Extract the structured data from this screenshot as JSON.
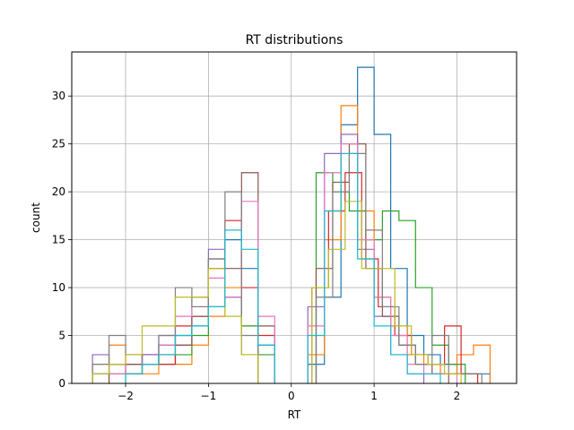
{
  "chart_data": {
    "type": "histogram",
    "title": "RT distributions",
    "xlabel": "RT",
    "ylabel": "count",
    "xlim": [
      -2.65,
      2.72
    ],
    "ylim": [
      0,
      34.6
    ],
    "x_ticks": [
      -2,
      -1,
      0,
      1,
      2
    ],
    "x_tick_labels": [
      "−2",
      "−1",
      "0",
      "1",
      "2"
    ],
    "y_ticks": [
      0,
      5,
      10,
      15,
      20,
      25,
      30
    ],
    "y_tick_labels": [
      "0",
      "5",
      "10",
      "15",
      "20",
      "25",
      "30"
    ],
    "grid": true,
    "histtype": "step",
    "series": [
      {
        "color": "#1f77b4",
        "edges": [
          0.2,
          0.4,
          0.6,
          0.8,
          1.0,
          1.2,
          1.4,
          1.6,
          1.8,
          2.0,
          2.2,
          2.4
        ],
        "counts": [
          2,
          9,
          27,
          33,
          26,
          12,
          5,
          3,
          2,
          1,
          1
        ]
      },
      {
        "color": "#ff7f0e",
        "edges": [
          0.2,
          0.4,
          0.6,
          0.8,
          1.0,
          1.2,
          1.4,
          1.6,
          1.8,
          2.0,
          2.2,
          2.4
        ],
        "counts": [
          3,
          15,
          29,
          18,
          9,
          6,
          3,
          2,
          1,
          3,
          4
        ]
      },
      {
        "color": "#2ca02c",
        "edges": [
          0.3,
          0.5,
          0.7,
          0.9,
          1.1,
          1.3,
          1.5,
          1.7,
          1.9,
          2.1
        ],
        "counts": [
          22,
          20,
          18,
          15,
          18,
          17,
          10,
          4,
          2
        ]
      },
      {
        "color": "#d62728",
        "edges": [
          0.25,
          0.45,
          0.65,
          0.85,
          1.05,
          1.25,
          1.45,
          1.65,
          1.85,
          2.05,
          2.25
        ],
        "counts": [
          10,
          18,
          22,
          13,
          8,
          5,
          3,
          2,
          6,
          1
        ]
      },
      {
        "color": "#9467bd",
        "edges": [
          0.2,
          0.4,
          0.6,
          0.8,
          1.0,
          1.2,
          1.4,
          1.6
        ],
        "counts": [
          8,
          24,
          26,
          14,
          7,
          3,
          1
        ]
      },
      {
        "color": "#8c564b",
        "edges": [
          0.3,
          0.5,
          0.7,
          0.9,
          1.1,
          1.3,
          1.5,
          1.7,
          1.9
        ],
        "counts": [
          12,
          21,
          25,
          12,
          7,
          4,
          2,
          1
        ]
      },
      {
        "color": "#e377c2",
        "edges": [
          0.2,
          0.4,
          0.6,
          0.8,
          1.0,
          1.2,
          1.4,
          1.6,
          1.8,
          2.0
        ],
        "counts": [
          6,
          22,
          25,
          15,
          9,
          5,
          2,
          1,
          1
        ]
      },
      {
        "color": "#7f7f7f",
        "edges": [
          0.3,
          0.5,
          0.7,
          0.9,
          1.1,
          1.3,
          1.5,
          1.7,
          1.9,
          2.1,
          2.3
        ],
        "counts": [
          9,
          20,
          24,
          16,
          8,
          4,
          2,
          5,
          1,
          1
        ]
      },
      {
        "color": "#bcbd22",
        "edges": [
          0.25,
          0.45,
          0.65,
          0.85,
          1.05,
          1.25,
          1.45,
          1.65,
          1.85,
          2.05
        ],
        "counts": [
          10,
          14,
          19,
          12,
          12,
          6,
          3,
          2,
          1
        ]
      },
      {
        "color": "#17becf",
        "edges": [
          0.2,
          0.4,
          0.6,
          0.8,
          1.0,
          1.2,
          1.4,
          1.6,
          1.8
        ],
        "counts": [
          5,
          18,
          24,
          13,
          6,
          3,
          1,
          1
        ]
      },
      {
        "color": "#1f77b4",
        "edges": [
          -2.4,
          -2.2,
          -2.0,
          -1.8,
          -1.6,
          -1.4,
          -1.2,
          -1.0,
          -0.8,
          -0.6,
          -0.4,
          -0.2
        ],
        "counts": [
          1,
          2,
          2,
          3,
          4,
          5,
          6,
          8,
          15,
          12,
          4
        ]
      },
      {
        "color": "#ff7f0e",
        "edges": [
          -2.4,
          -2.2,
          -2.0,
          -1.8,
          -1.6,
          -1.4,
          -1.2,
          -1.0,
          -0.8,
          -0.6,
          -0.4
        ],
        "counts": [
          2,
          4,
          2,
          1,
          3,
          2,
          4,
          7,
          10,
          6
        ]
      },
      {
        "color": "#2ca02c",
        "edges": [
          -2.0,
          -1.8,
          -1.6,
          -1.4,
          -1.2,
          -1.0,
          -0.8,
          -0.6,
          -0.4,
          -0.2
        ],
        "counts": [
          1,
          2,
          2,
          3,
          5,
          8,
          9,
          6,
          3
        ]
      },
      {
        "color": "#d62728",
        "edges": [
          -2.2,
          -2.0,
          -1.8,
          -1.6,
          -1.4,
          -1.2,
          -1.0,
          -0.8,
          -0.6,
          -0.4,
          -0.2
        ],
        "counts": [
          2,
          1,
          3,
          2,
          6,
          7,
          12,
          17,
          10,
          5
        ]
      },
      {
        "color": "#9467bd",
        "edges": [
          -2.4,
          -2.2,
          -2.0,
          -1.8,
          -1.6,
          -1.4,
          -1.2,
          -1.0,
          -0.8,
          -0.6,
          -0.4
        ],
        "counts": [
          3,
          2,
          2,
          3,
          5,
          4,
          9,
          14,
          9,
          3
        ]
      },
      {
        "color": "#8c564b",
        "edges": [
          -2.2,
          -2.0,
          -1.8,
          -1.6,
          -1.4,
          -1.2,
          -1.0,
          -0.8,
          -0.6,
          -0.4,
          -0.2
        ],
        "counts": [
          1,
          2,
          2,
          3,
          4,
          7,
          13,
          12,
          22,
          6
        ]
      },
      {
        "color": "#e377c2",
        "edges": [
          -2.4,
          -2.2,
          -2.0,
          -1.8,
          -1.6,
          -1.4,
          -1.2,
          -1.0,
          -0.8,
          -0.6,
          -0.4,
          -0.2
        ],
        "counts": [
          1,
          1,
          3,
          2,
          4,
          7,
          8,
          11,
          9,
          19,
          7
        ]
      },
      {
        "color": "#7f7f7f",
        "edges": [
          -2.4,
          -2.2,
          -2.0,
          -1.8,
          -1.6,
          -1.4,
          -1.2,
          -1.0,
          -0.8,
          -0.6,
          -0.4
        ],
        "counts": [
          2,
          5,
          3,
          2,
          5,
          10,
          8,
          13,
          20,
          5
        ]
      },
      {
        "color": "#bcbd22",
        "edges": [
          -2.4,
          -2.2,
          -2.0,
          -1.8,
          -1.6,
          -1.4,
          -1.2,
          -1.0,
          -0.8,
          -0.6,
          -0.4
        ],
        "counts": [
          1,
          2,
          3,
          6,
          6,
          9,
          9,
          12,
          7,
          3
        ]
      },
      {
        "color": "#17becf",
        "edges": [
          -2.0,
          -1.8,
          -1.6,
          -1.4,
          -1.2,
          -1.0,
          -0.8,
          -0.6,
          -0.4,
          -0.2
        ],
        "counts": [
          1,
          2,
          3,
          5,
          6,
          8,
          16,
          14,
          4
        ]
      }
    ]
  }
}
